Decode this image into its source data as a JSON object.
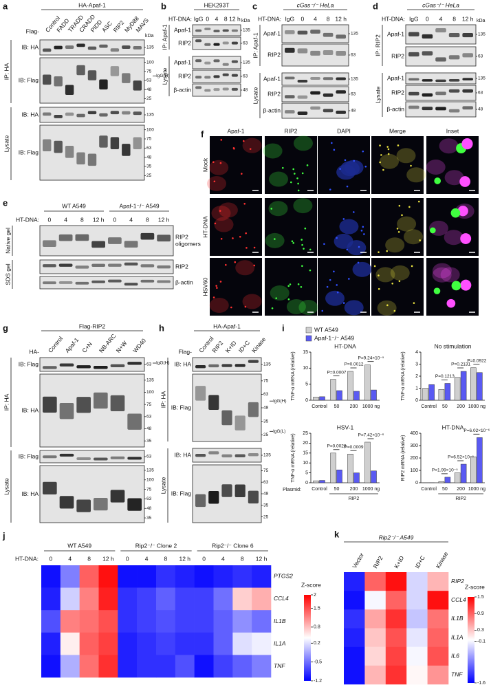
{
  "panels": {
    "a": {
      "letter": "a",
      "header": "HA-Apaf-1",
      "prefix": "Flag-",
      "lanes": [
        "Control",
        "FADD",
        "TRADD",
        "CRADD",
        "PIDD",
        "ASC",
        "RIP2",
        "MyD88",
        "MAVS"
      ],
      "unit": "kDa",
      "blots": [
        {
          "label": "IB: HA",
          "markers": [
            135
          ]
        },
        {
          "label": "IB: Flag",
          "markers": [
            100,
            75,
            63,
            48,
            25
          ],
          "notes": [
            "IgG(H)"
          ]
        },
        {
          "label": "IB: HA",
          "markers": [
            135
          ]
        },
        {
          "label": "IB: Flag",
          "markers": [
            100,
            75,
            63,
            48,
            35,
            25
          ]
        }
      ],
      "groups": [
        "IP: HA",
        "Lysate"
      ]
    },
    "b": {
      "letter": "b",
      "header": "HEK293T",
      "prefix": "HT-DNA:",
      "lanes": [
        "IgG",
        "0",
        "4",
        "8",
        "12 h"
      ],
      "unit": "kDa",
      "blots": [
        {
          "label": "Apaf-1",
          "markers": [
            135
          ]
        },
        {
          "label": "RIP2",
          "markers": [
            63
          ]
        },
        {
          "label": "Apaf-1",
          "markers": [
            135
          ]
        },
        {
          "label": "RIP2",
          "markers": [
            63
          ]
        },
        {
          "label": "β-actin",
          "markers": [
            48
          ]
        }
      ],
      "groups": [
        "IP: Apaf-1",
        "Lysate"
      ]
    },
    "c": {
      "letter": "c",
      "header": "cGas⁻/⁻ HeLa",
      "prefix": "HT-DNA:",
      "lanes": [
        "IgG",
        "0",
        "4",
        "8",
        "12 h"
      ],
      "blots": [
        {
          "label": "Apaf-1",
          "markers": [
            135
          ]
        },
        {
          "label": "RIP2",
          "markers": [
            63
          ]
        },
        {
          "label": "Apaf-1",
          "markers": [
            135
          ]
        },
        {
          "label": "RIP2",
          "markers": [
            63
          ]
        },
        {
          "label": "β-actin",
          "markers": [
            48
          ]
        }
      ],
      "groups": [
        "IP: Apaf-1",
        "Lysate"
      ]
    },
    "d": {
      "letter": "d",
      "header": "cGas⁻/⁻ HeLa",
      "prefix": "HT-DNA:",
      "lanes": [
        "IgG",
        "0",
        "4",
        "8",
        "12 h"
      ],
      "unit": "kDa",
      "blots": [
        {
          "label": "Apaf-1",
          "markers": [
            135
          ]
        },
        {
          "label": "RIP2",
          "markers": [
            63
          ]
        },
        {
          "label": "Apaf-1",
          "markers": [
            135
          ]
        },
        {
          "label": "RIP2",
          "markers": [
            63
          ]
        },
        {
          "label": "β-actin",
          "markers": [
            48
          ]
        }
      ],
      "groups": [
        "IP: RIP2",
        "Lysate"
      ]
    },
    "e": {
      "letter": "e",
      "headers": [
        "WT A549",
        "Apaf-1⁻/⁻ A549"
      ],
      "prefix": "HT-DNA:",
      "lanes": [
        "0",
        "4",
        "8",
        "12 h",
        "0",
        "4",
        "8",
        "12 h"
      ],
      "blots": [
        {
          "label": [
            "RIP2",
            "oligomers"
          ]
        },
        {
          "label": "RIP2"
        },
        {
          "label": "β-actin"
        }
      ],
      "groups": [
        "Native gel",
        "SDS gel"
      ]
    },
    "f": {
      "letter": "f",
      "columns": [
        "Apaf-1",
        "RIP2",
        "DAPI",
        "Merge",
        "Inset"
      ],
      "rows": [
        "Mock",
        "HT-DNA",
        "HSV60"
      ]
    },
    "g": {
      "letter": "g",
      "header": "Flag-RIP2",
      "prefix": "HA-",
      "lanes": [
        "Control",
        "Apaf-1",
        "C+N",
        "NB-ARC",
        "N+W",
        "WD40"
      ],
      "blots": [
        {
          "label": "IB: Flag",
          "markers": [
            63
          ],
          "notes": [
            "IgG(H)"
          ]
        },
        {
          "label": "IB: HA",
          "markers": [
            135,
            100,
            75,
            63,
            48,
            35
          ]
        },
        {
          "label": "IB: Flag",
          "markers": [
            63
          ]
        },
        {
          "label": "IB: HA",
          "markers": [
            135,
            100,
            75,
            63,
            48,
            35
          ]
        }
      ],
      "groups": [
        "IP: HA",
        "Lysate"
      ]
    },
    "h": {
      "letter": "h",
      "header": "HA-Apaf-1",
      "prefix": "Flag-",
      "lanes": [
        "Control",
        "RIP2",
        "K+ID",
        "ID+C",
        "Kinase"
      ],
      "blots": [
        {
          "label": "IB: HA",
          "markers": [
            135
          ]
        },
        {
          "label": "IB: Flag",
          "markers": [
            75,
            63,
            48,
            35,
            25
          ],
          "notes": [
            "IgG(H)",
            "IgG(L)"
          ]
        },
        {
          "label": "IB: HA",
          "markers": [
            135
          ]
        },
        {
          "label": "IB: Flag",
          "markers": [
            75,
            63,
            48,
            35,
            25
          ]
        }
      ],
      "groups": [
        "IP: HA",
        "Lysate"
      ]
    },
    "i": {
      "letter": "i",
      "series": [
        {
          "name": "WT A549",
          "color": "#cfcfcf"
        },
        {
          "name": "Apaf-1⁻/⁻ A549",
          "color": "#5a5af2"
        }
      ],
      "charts": [
        {
          "type": "bar",
          "title": "HT-DNA",
          "ylabel": "TNF-α mRNA (relative)",
          "categories": [
            "Control",
            "50",
            "200",
            "1000 ng"
          ],
          "values": [
            [
              1,
              6.5,
              9,
              11
            ],
            [
              1.1,
              3,
              2.8,
              3.2
            ]
          ],
          "ylim": [
            0,
            15
          ],
          "yticks": [
            0,
            5,
            10,
            15
          ],
          "p_values": [
            "P=0.0007",
            "P=0.0012",
            "P=9.24×10⁻⁵"
          ]
        },
        {
          "type": "bar",
          "title": "No stimulation",
          "ylabel": "TNF-α mRNA (relative)",
          "categories": [
            "Control",
            "50",
            "200",
            "1000 ng"
          ],
          "values": [
            [
              1,
              0.9,
              1.9,
              2.7
            ],
            [
              1.3,
              1.4,
              2.4,
              2.3
            ]
          ],
          "ylim": [
            0,
            4
          ],
          "yticks": [
            0,
            1,
            2,
            3,
            4
          ],
          "p_values": [
            "P=0.1213",
            "P=0.2131",
            "P=0.0922"
          ]
        },
        {
          "type": "bar",
          "title": "HSV-1",
          "ylabel": "TNF-α mRNA (relative)",
          "xprefix": "Plasmid:",
          "group": "RIP2",
          "categories": [
            "Control",
            "50",
            "200",
            "1000 ng"
          ],
          "values": [
            [
              1,
              15,
              14.5,
              20.5
            ],
            [
              1.2,
              6.5,
              5,
              6
            ]
          ],
          "ylim": [
            0,
            25
          ],
          "yticks": [
            0,
            5,
            10,
            15,
            20,
            25
          ],
          "p_values": [
            "P=0.0028",
            "P=0.0009",
            "P=7.42×10⁻⁶"
          ]
        },
        {
          "type": "bar",
          "title": "HT-DNA",
          "ylabel": "RIP2 mRNA (relative)",
          "group": "RIP2",
          "categories": [
            "Control",
            "50",
            "200",
            "1000 ng"
          ],
          "values": [
            [
              1,
              10,
              80,
              210
            ],
            [
              1,
              45,
              150,
              365
            ]
          ],
          "ylim": [
            0,
            400
          ],
          "yticks": [
            0,
            100,
            200,
            300,
            400
          ],
          "p_values": [
            "P=1.99×10⁻⁵",
            "P=6.52×10⁻⁵",
            "P=6.02×10⁻⁶"
          ]
        }
      ]
    },
    "j": {
      "letter": "j",
      "headers": [
        "WT A549",
        "Rip2⁻/⁻ Clone 2",
        "Rip2⁻/⁻ Clone 6"
      ],
      "prefix": "HT-DNA:",
      "lanes": [
        "0",
        "4",
        "8",
        "12 h",
        "0",
        "4",
        "8",
        "12 h",
        "0",
        "4",
        "8",
        "12 h"
      ],
      "genes": [
        "PTGS2",
        "CCL4",
        "IL1B",
        "IL1A",
        "TNF"
      ],
      "values": [
        [
          -1.1,
          -0.4,
          1.4,
          1.9,
          -1.1,
          -1.1,
          -0.9,
          -1.0,
          -1.1,
          -1.0,
          -0.9,
          -1.0
        ],
        [
          -1.0,
          0.1,
          1.2,
          1.8,
          -0.9,
          -0.8,
          -0.6,
          -0.8,
          -0.8,
          -0.5,
          0.7,
          0.9
        ],
        [
          -0.7,
          1.2,
          1.3,
          1.5,
          -0.9,
          -0.8,
          -0.7,
          -0.8,
          -0.8,
          -0.6,
          -0.3,
          -0.5
        ],
        [
          -1.0,
          0.5,
          1.4,
          1.6,
          -1.0,
          -0.9,
          -0.8,
          -0.9,
          -0.9,
          -0.6,
          0.2,
          0.3
        ],
        [
          -1.1,
          -0.1,
          1.3,
          1.7,
          -1.0,
          -0.9,
          -0.9,
          -0.7,
          -1.1,
          -0.8,
          -0.6,
          -0.4
        ]
      ],
      "zlabel": "Z-score",
      "zlim": [
        -1.2,
        2
      ],
      "zticks": [
        2,
        1.5,
        0.8,
        0.2,
        -0.5,
        -1.2
      ]
    },
    "k": {
      "letter": "k",
      "header": "Rip2⁻/⁻ A549",
      "columns": [
        "Vector",
        "RIP2",
        "K+ID",
        "ID+C",
        "Kinase"
      ],
      "genes": [
        "RIP2",
        "CCL4",
        "IL1B",
        "IL1A",
        "IL6",
        "TNF"
      ],
      "values": [
        [
          -1.4,
          0.9,
          1.4,
          -0.3,
          0.4
        ],
        [
          -1.5,
          -0.1,
          0.9,
          -0.3,
          1.4
        ],
        [
          -1.3,
          0.5,
          1.2,
          -0.4,
          0.8
        ],
        [
          -1.4,
          0.3,
          1.0,
          -0.2,
          0.9
        ],
        [
          -1.5,
          0.2,
          1.1,
          -0.1,
          1.0
        ],
        [
          -1.5,
          0.4,
          1.2,
          0.0,
          0.6
        ]
      ],
      "zlabel": "Z-score",
      "zlim": [
        -1.6,
        1.5
      ],
      "zticks": [
        1.5,
        0.9,
        0.3,
        -0.1,
        -1.6
      ]
    }
  }
}
